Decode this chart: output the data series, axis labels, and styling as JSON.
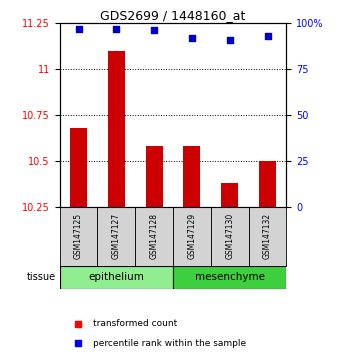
{
  "title": "GDS2699 / 1448160_at",
  "samples": [
    "GSM147125",
    "GSM147127",
    "GSM147128",
    "GSM147129",
    "GSM147130",
    "GSM147132"
  ],
  "red_values": [
    10.68,
    11.1,
    10.58,
    10.58,
    10.38,
    10.5
  ],
  "blue_values": [
    97,
    97,
    96,
    92,
    91,
    93
  ],
  "ylim_left": [
    10.25,
    11.25
  ],
  "ylim_right": [
    0,
    100
  ],
  "yticks_left": [
    10.25,
    10.5,
    10.75,
    11.0,
    11.25
  ],
  "yticks_right": [
    0,
    25,
    50,
    75,
    100
  ],
  "ytick_labels_left": [
    "10.25",
    "10.5",
    "10.75",
    "11",
    "11.25"
  ],
  "ytick_labels_right": [
    "0",
    "25",
    "50",
    "75",
    "100%"
  ],
  "epi_color": "#90ee90",
  "mes_color": "#3ecf3e",
  "tissue_label": "tissue",
  "bar_color": "#cc0000",
  "dot_color": "#0000cc",
  "bar_bottom": 10.25,
  "legend_red": "transformed count",
  "legend_blue": "percentile rank within the sample"
}
